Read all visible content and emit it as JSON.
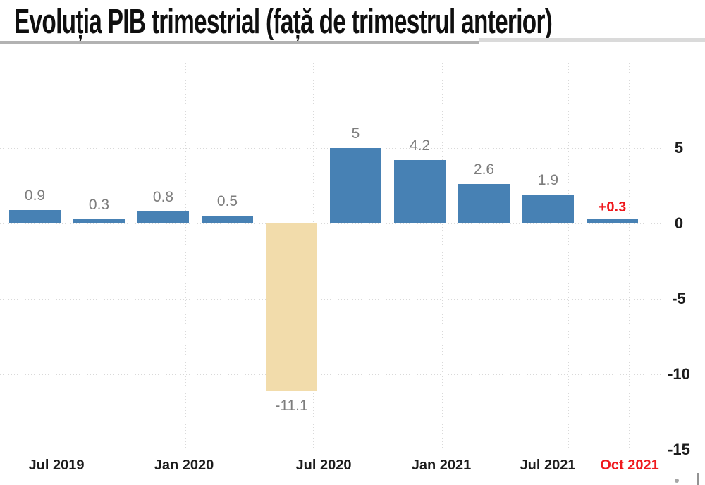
{
  "title": "Evoluția PIB trimestrial (față de trimestrul anterior)",
  "colors": {
    "bar_blue": "#4781b4",
    "bar_beige": "#f2dcab",
    "highlight_red": "#ef1a1e",
    "value_label_gray": "#7d7d7d",
    "axis_label_dark": "#1c1c1c",
    "gridline_gray": "#d9d9d9",
    "title_black": "#0f0f0f",
    "background": "#ffffff"
  },
  "chart_data": {
    "type": "bar",
    "title": "Evoluția PIB trimestrial (față de trimestrul anterior)",
    "bars": [
      {
        "label": "0.9",
        "value": 0.9,
        "color": "blue",
        "highlight": false
      },
      {
        "label": "0.3",
        "value": 0.3,
        "color": "blue",
        "highlight": false
      },
      {
        "label": "0.8",
        "value": 0.8,
        "color": "blue",
        "highlight": false
      },
      {
        "label": "0.5",
        "value": 0.5,
        "color": "blue",
        "highlight": false
      },
      {
        "label": "-11.1",
        "value": -11.1,
        "color": "beige",
        "highlight": false
      },
      {
        "label": "5",
        "value": 5,
        "color": "blue",
        "highlight": false
      },
      {
        "label": "4.2",
        "value": 4.2,
        "color": "blue",
        "highlight": false
      },
      {
        "label": "2.6",
        "value": 2.6,
        "color": "blue",
        "highlight": false
      },
      {
        "label": "1.9",
        "value": 1.9,
        "color": "blue",
        "highlight": false
      },
      {
        "label": "+0.3",
        "value": 0.3,
        "color": "blue",
        "highlight": true
      }
    ],
    "x_ticks": [
      {
        "label": "Jul 2019",
        "highlight": false
      },
      {
        "label": "Jan 2020",
        "highlight": false
      },
      {
        "label": "Jul 2020",
        "highlight": false
      },
      {
        "label": "Jan 2021",
        "highlight": false
      },
      {
        "label": "Jul 2021",
        "highlight": false
      },
      {
        "label": "Oct 2021",
        "highlight": true
      }
    ],
    "y_ticks": [
      5,
      0,
      -5,
      -10,
      -15
    ],
    "gridline_values": [
      10,
      5,
      0,
      -5,
      -10,
      -15
    ],
    "ylim": [
      -15,
      10
    ],
    "grid": "dotted",
    "legend": null,
    "y_axis_side": "right"
  }
}
